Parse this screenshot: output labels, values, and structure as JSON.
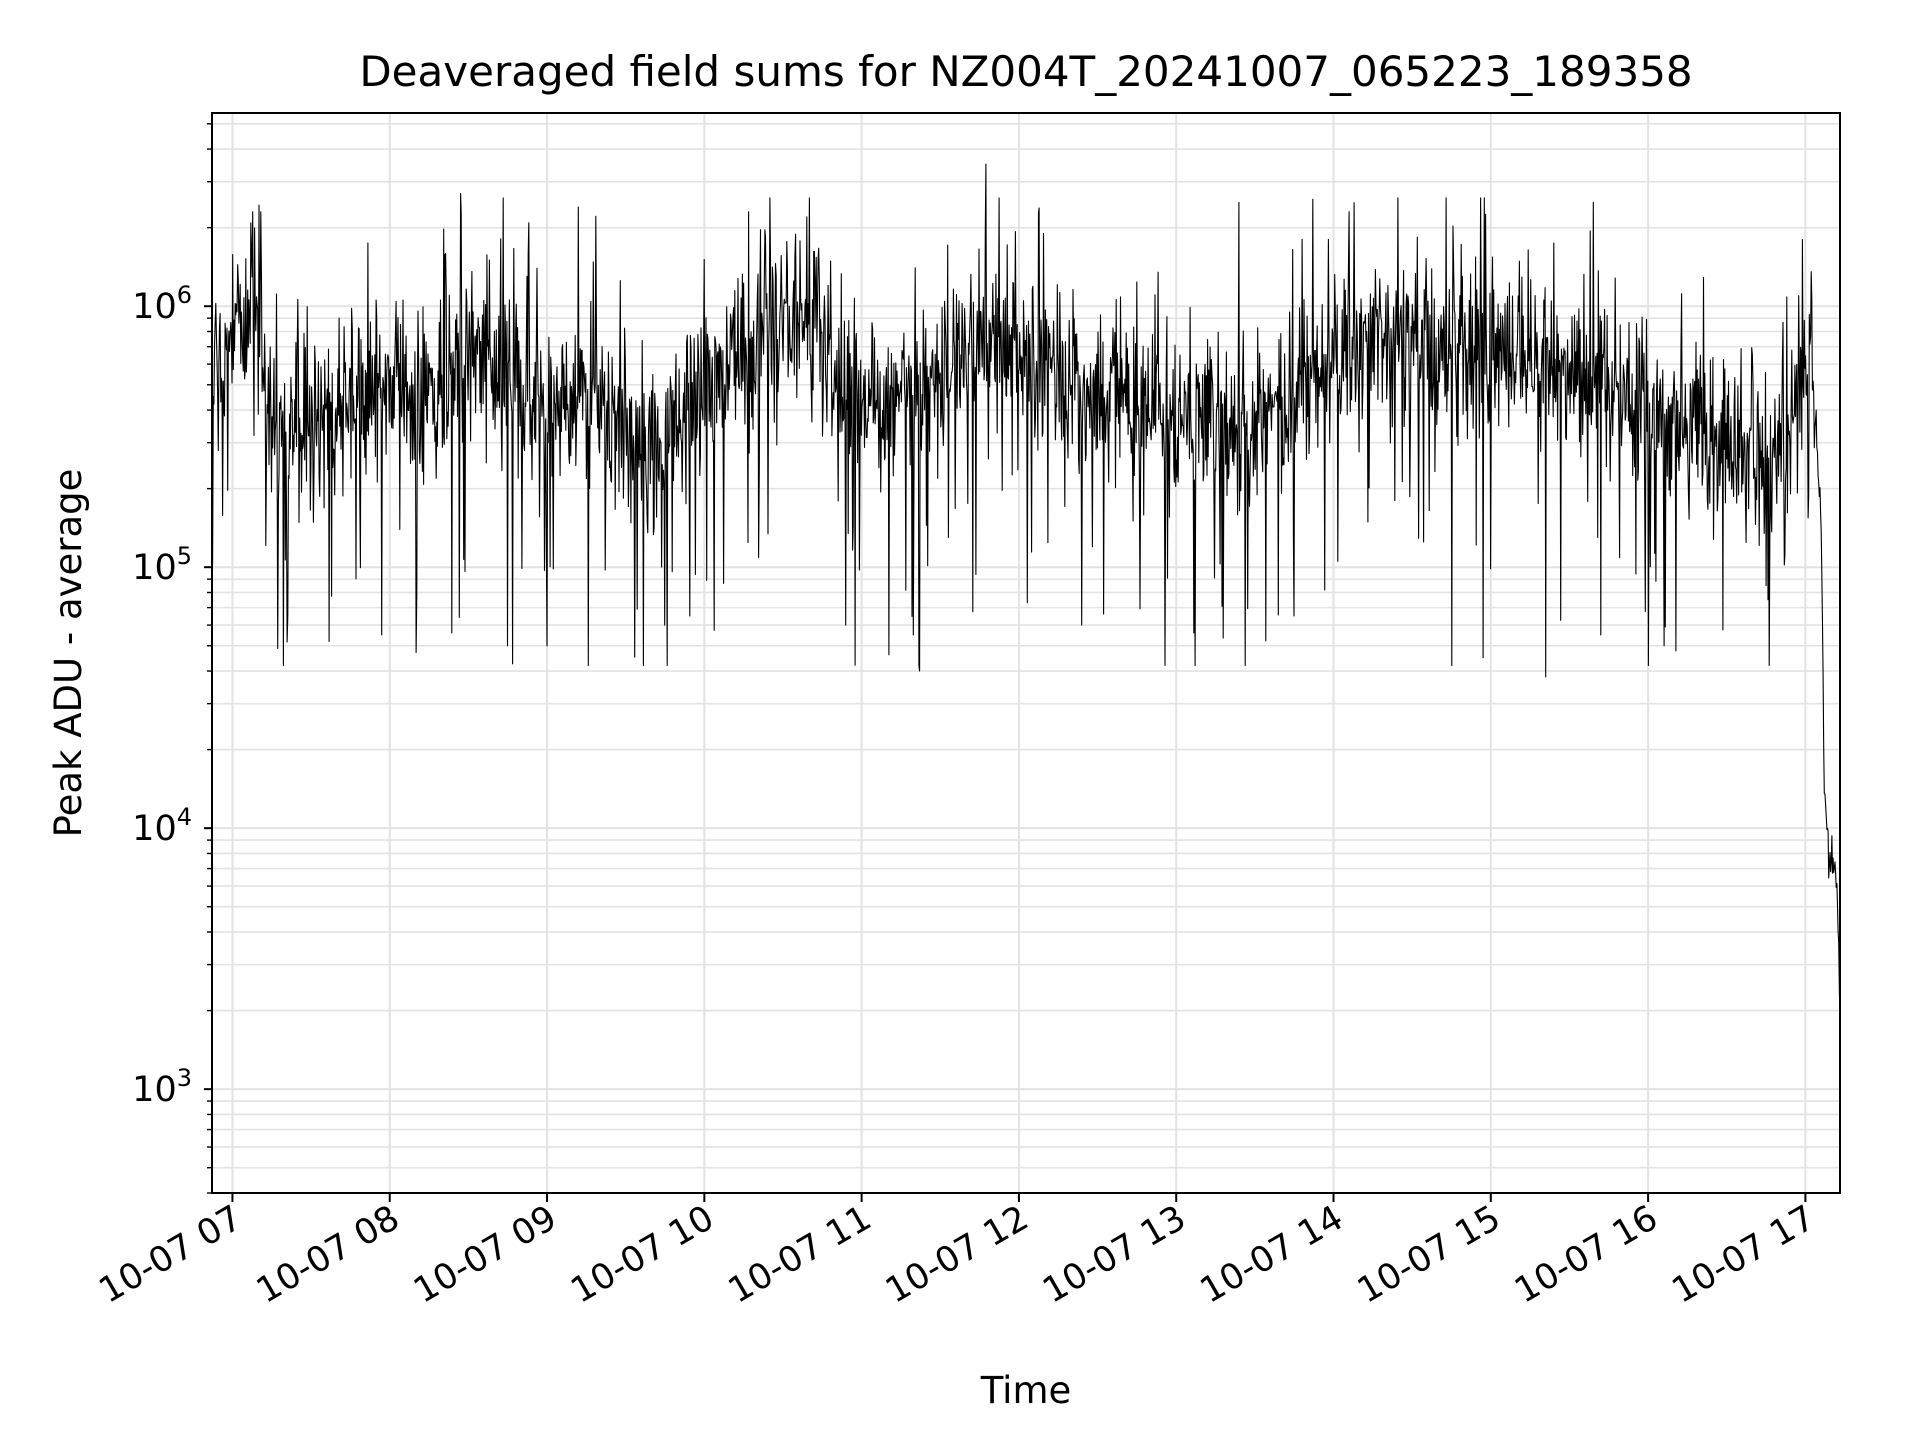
{
  "chart_data": {
    "type": "line",
    "title": "Deaveraged field sums for NZ004T_20241007_065223_189358",
    "xlabel": "Time",
    "ylabel": "Peak ADU - average",
    "yscale": "log",
    "ylim": [
      400,
      5500000
    ],
    "xlim_hours": [
      6.87,
      17.22
    ],
    "grid": true,
    "line_color": "#000000",
    "grid_color": "#e3e3e3",
    "x_ticks": [
      {
        "label": "10-07 07",
        "hour": 7
      },
      {
        "label": "10-07 08",
        "hour": 8
      },
      {
        "label": "10-07 09",
        "hour": 9
      },
      {
        "label": "10-07 10",
        "hour": 10
      },
      {
        "label": "10-07 11",
        "hour": 11
      },
      {
        "label": "10-07 12",
        "hour": 12
      },
      {
        "label": "10-07 13",
        "hour": 13
      },
      {
        "label": "10-07 14",
        "hour": 14
      },
      {
        "label": "10-07 15",
        "hour": 15
      },
      {
        "label": "10-07 16",
        "hour": 16
      },
      {
        "label": "10-07 17",
        "hour": 17
      }
    ],
    "y_ticks": [
      {
        "base": "10",
        "exp": "3",
        "value": 1000
      },
      {
        "base": "10",
        "exp": "4",
        "value": 10000
      },
      {
        "base": "10",
        "exp": "5",
        "value": 100000
      },
      {
        "base": "10",
        "exp": "6",
        "value": 1000000
      }
    ],
    "series": [
      {
        "name": "deaveraged field sum",
        "envelope_note": "typical level (x_hour, value); trace fluctuates strongly around this",
        "x_hour": [
          6.87,
          7.0,
          7.1,
          7.16,
          7.2,
          7.3,
          7.5,
          7.8,
          8.0,
          8.3,
          8.5,
          8.8,
          9.0,
          9.3,
          9.5,
          9.7,
          9.9,
          10.2,
          10.5,
          10.8,
          11.0,
          11.3,
          11.5,
          11.8,
          12.0,
          12.3,
          12.6,
          13.0,
          13.3,
          13.5,
          13.8,
          14.0,
          14.3,
          14.6,
          15.0,
          15.3,
          15.6,
          15.9,
          16.2,
          16.5,
          16.8,
          16.95,
          17.0,
          17.03,
          17.06,
          17.1,
          17.12,
          17.15,
          17.18,
          17.2,
          17.22
        ],
        "values": [
          600000,
          700000,
          900000,
          1500000,
          500000,
          300000,
          350000,
          400000,
          500000,
          450000,
          700000,
          500000,
          400000,
          450000,
          300000,
          250000,
          400000,
          600000,
          900000,
          700000,
          400000,
          450000,
          600000,
          800000,
          700000,
          500000,
          450000,
          400000,
          350000,
          350000,
          500000,
          600000,
          800000,
          700000,
          700000,
          650000,
          550000,
          450000,
          350000,
          300000,
          280000,
          400000,
          900000,
          900000,
          400000,
          150000,
          15000,
          7000,
          8000,
          6000,
          2000
        ],
        "peak_hours": [
          7.13,
          8.45,
          9.2,
          10.28,
          10.65,
          11.79,
          13.4,
          14.1,
          15.65,
          16.98
        ],
        "peak_values": [
          2300000,
          2700000,
          2400000,
          2300000,
          2200000,
          3500000,
          2500000,
          2300000,
          2500000,
          1800000
        ],
        "trough_hours": [
          6.95,
          7.35,
          7.95,
          8.75,
          9.0,
          9.75,
          10.9,
          11.37,
          12.4,
          13.75,
          14.75,
          14.95,
          15.35,
          15.7,
          16.1,
          16.75
        ],
        "trough_values": [
          380000,
          65000,
          55000,
          50000,
          50000,
          60000,
          60000,
          40000,
          60000,
          65000,
          42000,
          45000,
          38000,
          55000,
          50000,
          85000
        ]
      }
    ]
  }
}
